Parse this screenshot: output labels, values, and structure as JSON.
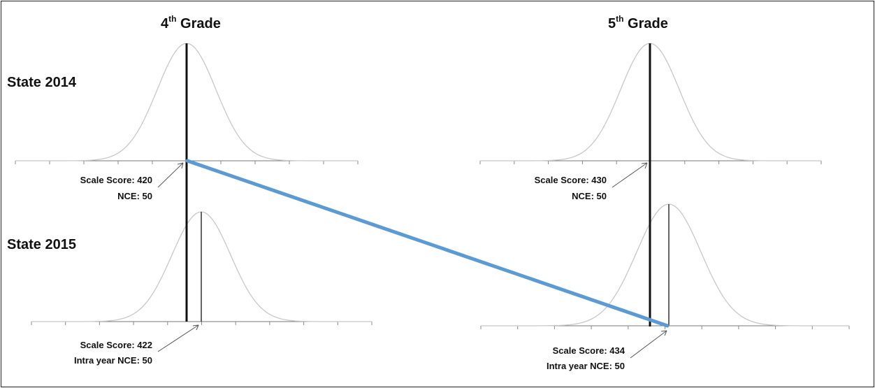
{
  "columns": {
    "grade4": {
      "title_num": "4",
      "title_sup": "th",
      "title_rest": " Grade"
    },
    "grade5": {
      "title_num": "5",
      "title_sup": "th",
      "title_rest": " Grade"
    }
  },
  "rows": {
    "state2014": "State 2014",
    "state2015": "State 2015"
  },
  "panels": {
    "g4_2014": {
      "line1": "Scale Score: 420",
      "line2": "NCE: 50"
    },
    "g5_2014": {
      "line1": "Scale Score: 430",
      "line2": "NCE: 50"
    },
    "g4_2015": {
      "line1": "Scale Score: 422",
      "line2": "Intra year NCE: 50"
    },
    "g5_2015": {
      "line1": "Scale Score: 434",
      "line2": "Intra year NCE: 50"
    }
  },
  "colors": {
    "connector": "#5b9bd5",
    "curve": "#c8c8c8",
    "mean_line": "#111111"
  }
}
